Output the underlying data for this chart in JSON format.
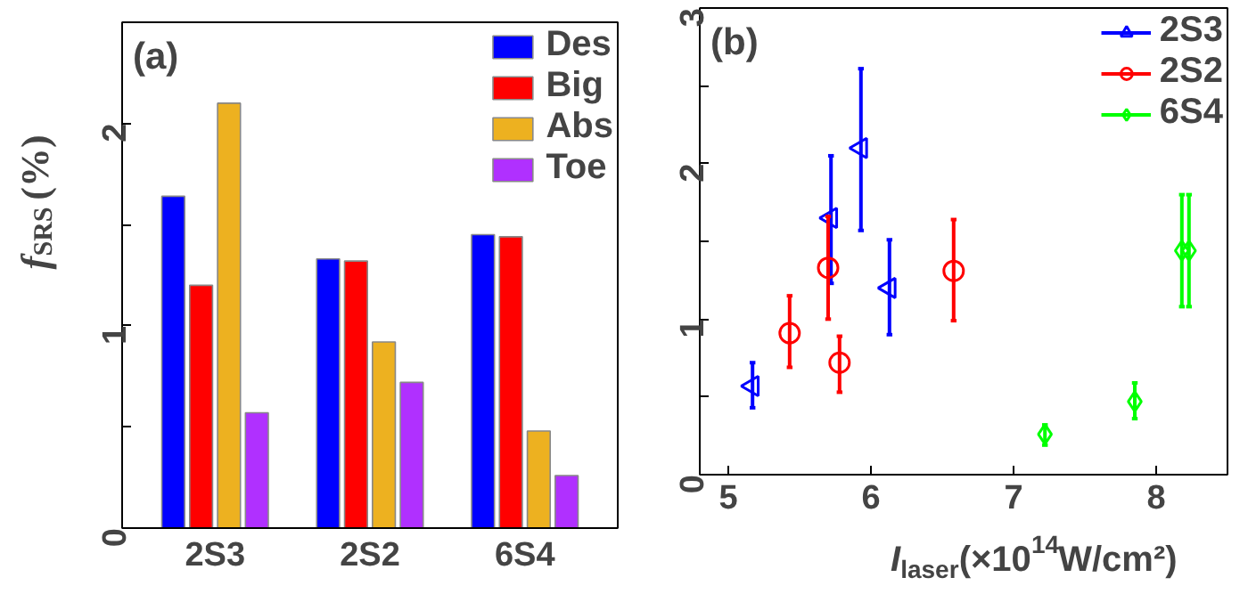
{
  "chart_data": [
    {
      "type": "bar",
      "title": "(a)",
      "ylabel": "f$_{SRS}$(%)",
      "categories": [
        "2S3",
        "2S2",
        "6S4"
      ],
      "ylim": [
        0,
        2.5
      ],
      "yticks": [
        0,
        {
          "value": 0.5,
          "label": null
        },
        1,
        {
          "value": 1.5,
          "label": null
        },
        2
      ],
      "legend": "top right",
      "grid": false,
      "series": [
        {
          "name": "Des",
          "color": "#0000ff",
          "values": [
            1.64,
            1.33,
            1.45
          ]
        },
        {
          "name": "Big",
          "color": "#ff0000",
          "values": [
            1.2,
            1.32,
            1.44
          ]
        },
        {
          "name": "Abs",
          "color": "#edb120",
          "values": [
            2.1,
            0.92,
            0.48
          ]
        },
        {
          "name": "Toe",
          "color": "#b030ff",
          "values": [
            0.57,
            0.72,
            0.26
          ]
        }
      ]
    },
    {
      "type": "scatter",
      "title": "(b)",
      "xlabel": "I$_{laser}$(×10$^{14}$W/cm²)",
      "xlim": [
        4.8,
        8.5
      ],
      "xticks": [
        5,
        6,
        7,
        8
      ],
      "ylim": [
        0,
        3
      ],
      "yticks": [
        0,
        {
          "value": 0.5,
          "label": null
        },
        1,
        {
          "value": 1.5,
          "label": null
        },
        2,
        {
          "value": 2.5,
          "label": null
        },
        3
      ],
      "legend": "top right",
      "grid": false,
      "series": [
        {
          "name": "2S3",
          "color": "#0000ff",
          "marker": "triangle",
          "x": [
            5.17,
            5.72,
            5.93,
            6.13
          ],
          "values": [
            0.57,
            1.65,
            2.1,
            1.2
          ],
          "errors": [
            [
              0.43,
              0.72
            ],
            [
              1.23,
              2.05
            ],
            [
              1.57,
              2.61
            ],
            [
              0.9,
              1.51
            ]
          ]
        },
        {
          "name": "2S2",
          "color": "#ff0000",
          "marker": "circle",
          "x": [
            5.43,
            5.7,
            5.78,
            6.58
          ],
          "values": [
            0.91,
            1.33,
            0.72,
            1.31
          ],
          "errors": [
            [
              0.69,
              1.15
            ],
            [
              1.0,
              1.66
            ],
            [
              0.53,
              0.89
            ],
            [
              0.99,
              1.64
            ]
          ]
        },
        {
          "name": "6S4",
          "color": "#00ff00",
          "marker": "diamond",
          "x": [
            7.22,
            7.85,
            8.18,
            8.23
          ],
          "values": [
            0.26,
            0.47,
            1.44,
            1.44
          ],
          "errors": [
            [
              0.19,
              0.32
            ],
            [
              0.36,
              0.59
            ],
            [
              1.08,
              1.8
            ],
            [
              1.08,
              1.8
            ]
          ]
        }
      ]
    }
  ]
}
